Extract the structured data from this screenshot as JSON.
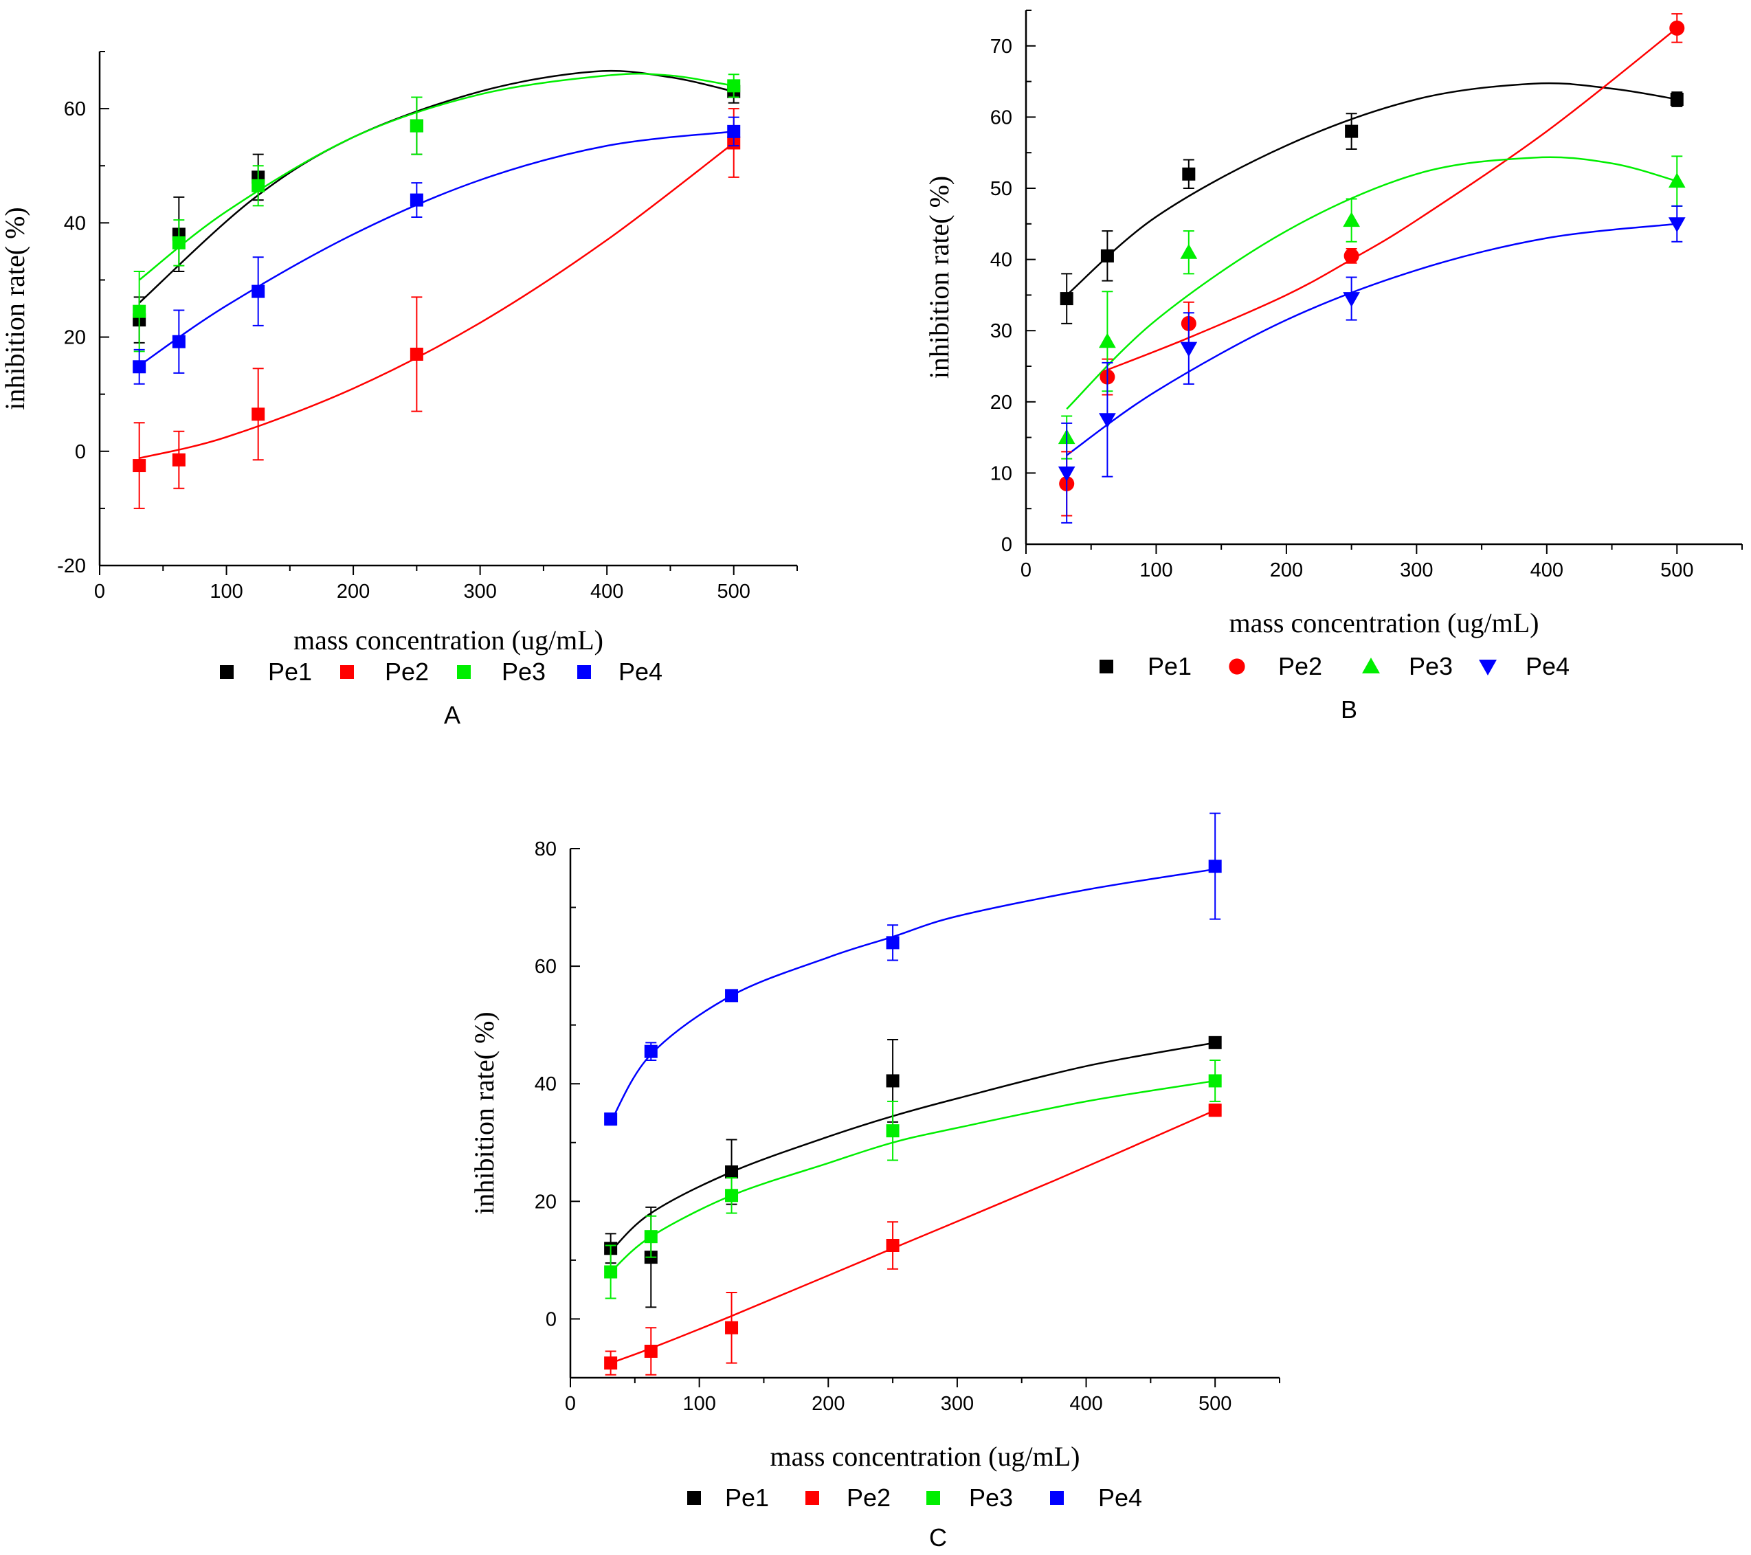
{
  "chart_data": [
    {
      "type": "scatter",
      "panel": "A",
      "xlabel": "mass concentration (ug/mL)",
      "ylabel": "inhibition rate(  %)",
      "xlim": [
        0,
        550
      ],
      "ylim": [
        -20,
        70
      ],
      "xticks": [
        0,
        100,
        200,
        300,
        400,
        500
      ],
      "yticks": [
        -20,
        0,
        20,
        40,
        60
      ],
      "legend_position": "bottom",
      "x": [
        31.25,
        62.5,
        125,
        250,
        500
      ],
      "series": [
        {
          "name": "Pe1",
          "color": "#000000",
          "marker": "square",
          "values": [
            23,
            38,
            48,
            57,
            63
          ],
          "errors": [
            4,
            6.5,
            4,
            5,
            2
          ],
          "fit": [
            [
              31.25,
              26
            ],
            [
              120,
              44
            ],
            [
              200,
              55
            ],
            [
              300,
              63
            ],
            [
              390,
              66.5
            ],
            [
              450,
              65.5
            ],
            [
              500,
              63
            ]
          ]
        },
        {
          "name": "Pe2",
          "color": "#ff0000",
          "marker": "square",
          "values": [
            -2.5,
            -1.5,
            6.5,
            17,
            54
          ],
          "errors": [
            7.5,
            5,
            8,
            10,
            6
          ],
          "fit": [
            [
              31.25,
              -1.2
            ],
            [
              100,
              2.5
            ],
            [
              200,
              11
            ],
            [
              300,
              22.5
            ],
            [
              400,
              37
            ],
            [
              500,
              54
            ]
          ]
        },
        {
          "name": "Pe3",
          "color": "#00ee00",
          "marker": "square",
          "values": [
            24.5,
            36.5,
            46.5,
            57,
            64
          ],
          "errors": [
            7,
            4,
            3.5,
            5,
            2
          ],
          "fit": [
            [
              31.25,
              30
            ],
            [
              100,
              42
            ],
            [
              200,
              55
            ],
            [
              300,
              62.5
            ],
            [
              400,
              65.8
            ],
            [
              450,
              65.8
            ],
            [
              500,
              64
            ]
          ]
        },
        {
          "name": "Pe4",
          "color": "#0000ff",
          "marker": "square",
          "values": [
            14.8,
            19.2,
            28,
            44,
            56
          ],
          "errors": [
            3,
            5.5,
            6,
            3,
            2.5
          ],
          "fit": [
            [
              31.25,
              15
            ],
            [
              100,
              25.5
            ],
            [
              200,
              38
            ],
            [
              300,
              47.5
            ],
            [
              400,
              53.5
            ],
            [
              500,
              56
            ]
          ]
        }
      ],
      "legend_labels": [
        "Pe1",
        "Pe2",
        "Pe3",
        "Pe4"
      ],
      "caption": "A"
    },
    {
      "type": "scatter",
      "panel": "B",
      "xlabel": "mass concentration (ug/mL)",
      "ylabel": "inhibition rate(  %)",
      "xlim": [
        0,
        550
      ],
      "ylim": [
        0,
        75
      ],
      "xticks": [
        0,
        100,
        200,
        300,
        400,
        500
      ],
      "yticks": [
        0,
        10,
        20,
        30,
        40,
        50,
        60,
        70
      ],
      "legend_position": "bottom",
      "x": [
        31.25,
        62.5,
        125,
        250,
        500
      ],
      "series": [
        {
          "name": "Pe1",
          "color": "#000000",
          "marker": "square",
          "values": [
            34.5,
            40.5,
            52,
            58,
            62.5
          ],
          "errors": [
            3.5,
            3.5,
            2,
            2.5,
            1
          ],
          "fit": [
            [
              31.25,
              35
            ],
            [
              100,
              46
            ],
            [
              200,
              56
            ],
            [
              300,
              62.5
            ],
            [
              390,
              64.7
            ],
            [
              450,
              64
            ],
            [
              500,
              62.5
            ]
          ]
        },
        {
          "name": "Pe2",
          "color": "#ff0000",
          "marker": "circle",
          "values": [
            8.5,
            23.5,
            31,
            40.5,
            72.5
          ],
          "errors": [
            4.5,
            2.5,
            3,
            1,
            2
          ],
          "fit": [
            [
              62.5,
              24.5
            ],
            [
              125,
              29
            ],
            [
              200,
              35
            ],
            [
              250,
              40
            ],
            [
              300,
              45.5
            ],
            [
              400,
              58
            ],
            [
              500,
              72.5
            ]
          ]
        },
        {
          "name": "Pe3",
          "color": "#00ee00",
          "marker": "triangle-up",
          "values": [
            15,
            28.5,
            41,
            45.5,
            51
          ],
          "errors": [
            3,
            7,
            3,
            3,
            3.5
          ],
          "fit": [
            [
              31.25,
              19
            ],
            [
              100,
              31.5
            ],
            [
              200,
              44
            ],
            [
              300,
              52
            ],
            [
              390,
              54.3
            ],
            [
              450,
              53.5
            ],
            [
              500,
              51
            ]
          ]
        },
        {
          "name": "Pe4",
          "color": "#0000ff",
          "marker": "triangle-down",
          "values": [
            10,
            17.5,
            27.5,
            34.5,
            45
          ],
          "errors": [
            7,
            8,
            5,
            3,
            2.5
          ],
          "fit": [
            [
              31.25,
              12.5
            ],
            [
              100,
              21.5
            ],
            [
              200,
              31.5
            ],
            [
              300,
              38.5
            ],
            [
              400,
              43
            ],
            [
              500,
              45
            ]
          ]
        }
      ],
      "legend_labels": [
        "Pe1",
        "Pe2",
        "Pe3",
        "Pe4"
      ],
      "caption": "B"
    },
    {
      "type": "scatter",
      "panel": "C",
      "xlabel": "mass concentration (ug/mL)",
      "ylabel": "inhibition rate(  %)",
      "xlim": [
        0,
        550
      ],
      "ylim": [
        -10,
        80
      ],
      "xticks": [
        0,
        100,
        200,
        300,
        400,
        500
      ],
      "yticks": [
        0,
        20,
        40,
        60,
        80
      ],
      "legend_position": "bottom",
      "x": [
        31.25,
        62.5,
        125,
        250,
        500
      ],
      "series": [
        {
          "name": "Pe1",
          "color": "#000000",
          "marker": "square",
          "values": [
            12,
            10.5,
            25,
            40.5,
            47
          ],
          "errors": [
            2.5,
            8.5,
            5.5,
            7,
            0.5
          ],
          "fit": [
            [
              31.25,
              11.5
            ],
            [
              62.5,
              18
            ],
            [
              125,
              25
            ],
            [
              200,
              31
            ],
            [
              250,
              34.5
            ],
            [
              300,
              37.5
            ],
            [
              400,
              43
            ],
            [
              500,
              47
            ]
          ]
        },
        {
          "name": "Pe2",
          "color": "#ff0000",
          "marker": "square",
          "values": [
            -7.5,
            -5.5,
            -1.5,
            12.5,
            35.5
          ],
          "errors": [
            2,
            4,
            6,
            4,
            1
          ],
          "fit": [
            [
              31.25,
              -7.5
            ],
            [
              62.5,
              -5
            ],
            [
              125,
              0.5
            ],
            [
              250,
              12
            ],
            [
              375,
              23.5
            ],
            [
              500,
              35.5
            ]
          ]
        },
        {
          "name": "Pe3",
          "color": "#00ee00",
          "marker": "square",
          "values": [
            8,
            14,
            21,
            32,
            40.5
          ],
          "errors": [
            4.5,
            3.5,
            3,
            5,
            3.5
          ],
          "fit": [
            [
              31.25,
              8
            ],
            [
              62.5,
              14
            ],
            [
              125,
              21
            ],
            [
              200,
              26.5
            ],
            [
              250,
              30
            ],
            [
              300,
              32.5
            ],
            [
              400,
              37
            ],
            [
              500,
              40.5
            ]
          ]
        },
        {
          "name": "Pe4",
          "color": "#0000ff",
          "marker": "square",
          "values": [
            34,
            45.5,
            55,
            64,
            77
          ],
          "errors": [
            1,
            1.5,
            0.3,
            3,
            9
          ],
          "fit": [
            [
              31.25,
              33.5
            ],
            [
              62.5,
              45
            ],
            [
              125,
              55
            ],
            [
              200,
              61.5
            ],
            [
              250,
              65
            ],
            [
              300,
              68.5
            ],
            [
              400,
              73
            ],
            [
              500,
              76.5
            ]
          ]
        }
      ],
      "legend_labels": [
        "Pe1",
        "Pe2",
        "Pe3",
        "Pe4"
      ],
      "caption": "C"
    }
  ]
}
